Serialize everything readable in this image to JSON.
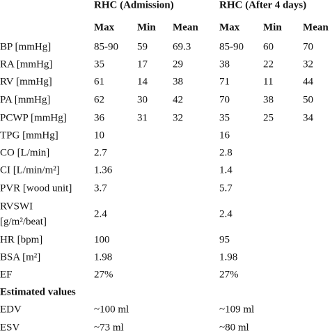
{
  "table": {
    "groups": [
      "RHC (Admission)",
      "RHC (After 4 days)"
    ],
    "subheaders": [
      "Max",
      "Min",
      "Mean"
    ],
    "rows": [
      {
        "label": [
          "BP [mmHg]"
        ],
        "admission": [
          "85-90",
          "59",
          "69.3"
        ],
        "after": [
          "85-90",
          "60",
          "70"
        ]
      },
      {
        "label": [
          "RA [mmHg]"
        ],
        "admission": [
          "35",
          "17",
          "29"
        ],
        "after": [
          "38",
          "22",
          "32"
        ]
      },
      {
        "label": [
          "RV [mmHg]"
        ],
        "admission": [
          "61",
          "14",
          "38"
        ],
        "after": [
          "71",
          "11",
          "44"
        ]
      },
      {
        "label": [
          "PA [mmHg]"
        ],
        "admission": [
          "62",
          "30",
          "42"
        ],
        "after": [
          "70",
          "38",
          "50"
        ]
      },
      {
        "label": [
          "PCWP [mmHg]"
        ],
        "admission": [
          "36",
          "31",
          "32"
        ],
        "after": [
          "35",
          "25",
          "34"
        ]
      },
      {
        "label": [
          "TPG [mmHg]"
        ],
        "admission": [
          "10"
        ],
        "after": [
          "16"
        ]
      },
      {
        "label": [
          "CO [L/min]"
        ],
        "admission": [
          "2.7"
        ],
        "after": [
          "2.8"
        ]
      },
      {
        "label": [
          "CI [L/min/m²]"
        ],
        "admission": [
          "1.36"
        ],
        "after": [
          "1.4"
        ]
      },
      {
        "label": [
          "PVR [wood unit]"
        ],
        "admission": [
          "3.7"
        ],
        "after": [
          "5.7"
        ]
      },
      {
        "label": [
          "RVSWI",
          "[g/m²/beat]"
        ],
        "admission": [
          "2.4"
        ],
        "after": [
          "2.4"
        ]
      },
      {
        "label": [
          "HR [bpm]"
        ],
        "admission": [
          "100"
        ],
        "after": [
          "95"
        ]
      },
      {
        "label": [
          "BSA [m²]"
        ],
        "admission": [
          "1.98"
        ],
        "after": [
          "1.98"
        ]
      },
      {
        "label": [
          "EF"
        ],
        "admission": [
          "27%"
        ],
        "after": [
          "27%"
        ]
      },
      {
        "section": "Estimated values"
      },
      {
        "label": [
          "EDV"
        ],
        "admission": [
          "~100 ml"
        ],
        "after": [
          "~109 ml"
        ]
      },
      {
        "label": [
          "ESV"
        ],
        "admission": [
          "~73 ml"
        ],
        "after": [
          "~80 ml"
        ]
      }
    ]
  }
}
